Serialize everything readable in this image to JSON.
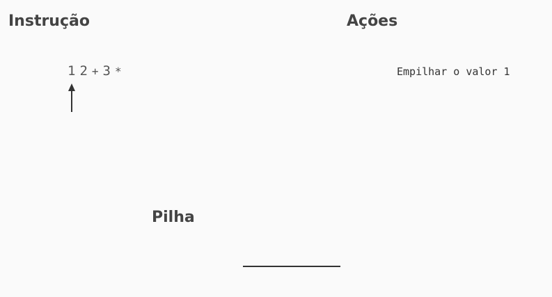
{
  "headings": {
    "instruction": "Instrução",
    "actions": "Ações",
    "stack": "Pilha"
  },
  "expression": {
    "tokens": [
      "1",
      "2",
      "+",
      "3",
      "*"
    ],
    "current_index": 0
  },
  "action_text": "Empilhar o valor 1",
  "stack": {
    "items": []
  }
}
